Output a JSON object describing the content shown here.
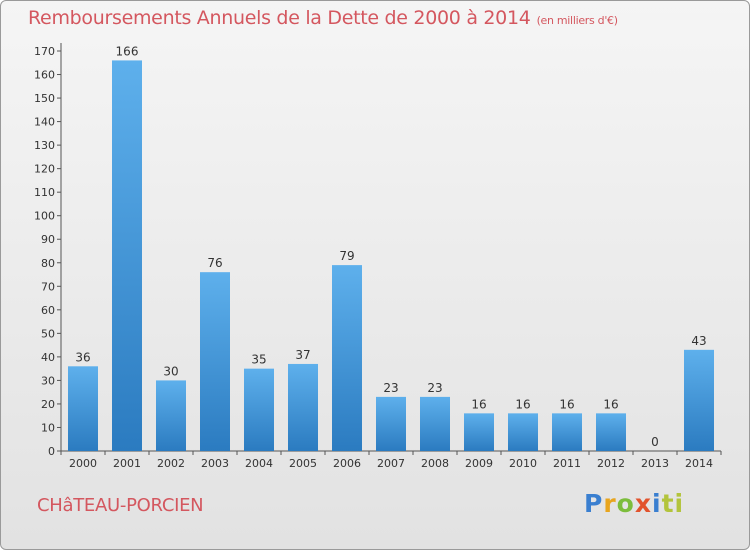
{
  "header": {
    "title": "Remboursements Annuels de la Dette de 2000 à 2014",
    "unit": "(en milliers d'€)"
  },
  "footer": {
    "commune": "CHâTEAU-PORCIEN",
    "logo": "Proxiti",
    "logo_letters": [
      "P",
      "r",
      "o",
      "x",
      "i",
      "ti"
    ]
  },
  "colors": {
    "title": "#d4575f",
    "bar_light": "#5eb0ec",
    "bar_dark": "#2b7bc0"
  },
  "chart_data": {
    "type": "bar",
    "title": "Remboursements Annuels de la Dette de 2000 à 2014",
    "xlabel": "",
    "ylabel": "",
    "categories": [
      "2000",
      "2001",
      "2002",
      "2003",
      "2004",
      "2005",
      "2006",
      "2007",
      "2008",
      "2009",
      "2010",
      "2011",
      "2012",
      "2013",
      "2014"
    ],
    "values": [
      36,
      166,
      30,
      76,
      35,
      37,
      79,
      23,
      23,
      16,
      16,
      16,
      16,
      0,
      43
    ],
    "ylim": [
      0,
      170
    ],
    "yticks": [
      0,
      10,
      20,
      30,
      40,
      50,
      60,
      70,
      80,
      90,
      100,
      110,
      120,
      130,
      140,
      150,
      160,
      170
    ],
    "grid": false
  }
}
